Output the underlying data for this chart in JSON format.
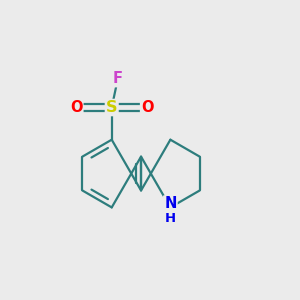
{
  "bg_color": "#ebebeb",
  "bond_color": "#2d7d7d",
  "atom_colors": {
    "S": "#cccc00",
    "O": "#ff0000",
    "F": "#cc44cc",
    "N": "#0000ee",
    "H": "#0000ee"
  },
  "line_width": 1.6,
  "figsize": [
    3.0,
    3.0
  ],
  "dpi": 100,
  "xlim": [
    0.0,
    1.0
  ],
  "ylim": [
    0.0,
    1.0
  ]
}
